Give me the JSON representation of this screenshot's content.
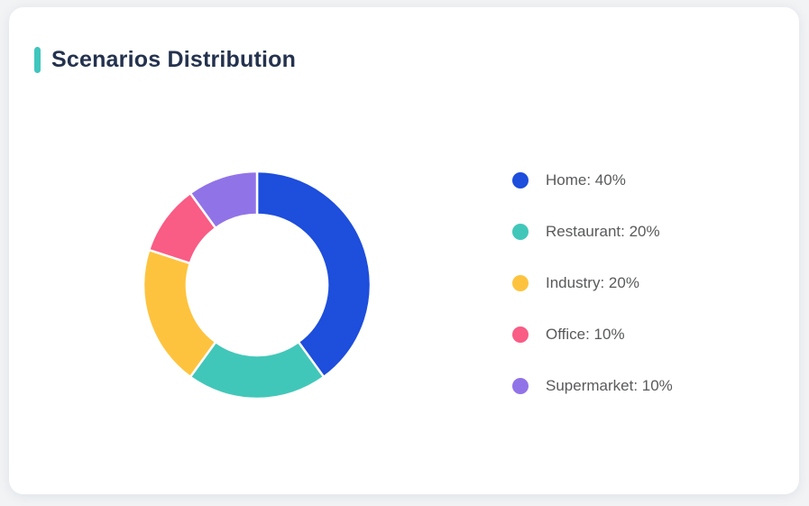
{
  "card": {
    "title": "Scenarios Distribution",
    "accent_color": "#3fc6be"
  },
  "chart_data": {
    "type": "pie",
    "subtype": "donut",
    "title": "Scenarios Distribution",
    "categories": [
      "Home",
      "Restaurant",
      "Industry",
      "Office",
      "Supermarket"
    ],
    "values": [
      40,
      20,
      20,
      10,
      10
    ],
    "unit": "%",
    "colors": [
      "#1d4edc",
      "#41c7b9",
      "#fec33e",
      "#f95c85",
      "#9173e8"
    ],
    "start_angle_deg": 0,
    "direction": "clockwise",
    "inner_radius_ratio": 0.62,
    "segment_gap_color": "#ffffff",
    "legend_position": "right",
    "legend": [
      {
        "label": "Home: 40%",
        "color": "#1d4edc"
      },
      {
        "label": "Restaurant: 20%",
        "color": "#41c7b9"
      },
      {
        "label": "Industry: 20%",
        "color": "#fec33e"
      },
      {
        "label": "Office: 10%",
        "color": "#f95c85"
      },
      {
        "label": "Supermarket: 10%",
        "color": "#9173e8"
      }
    ]
  }
}
